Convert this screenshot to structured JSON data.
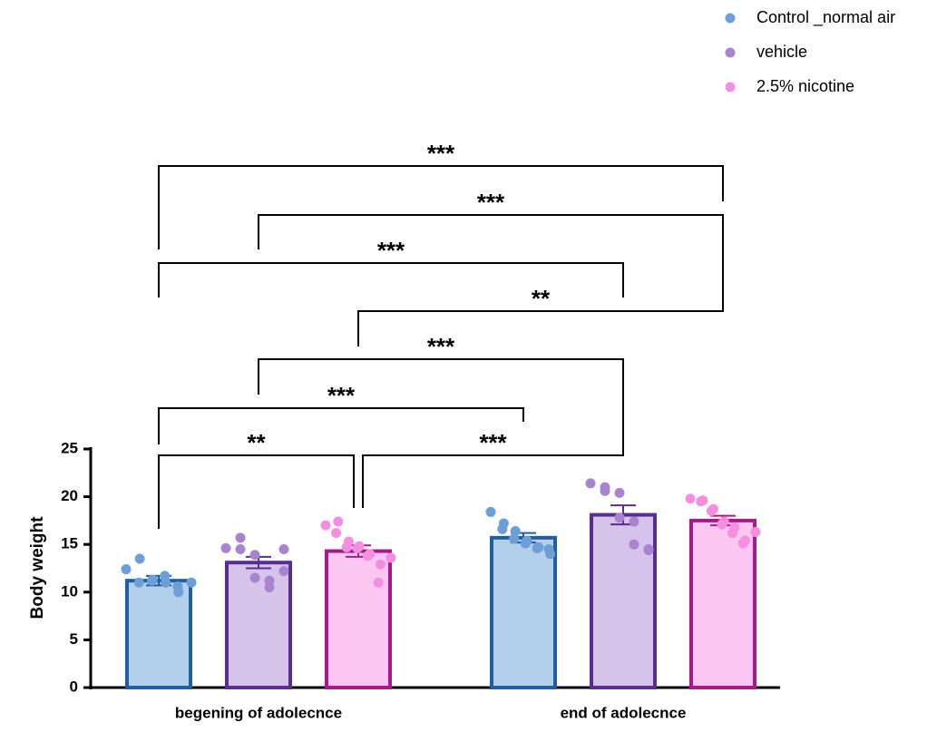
{
  "chart_data": {
    "type": "bar",
    "y_label": "Body weight",
    "categories": [
      "begening of adolecnce",
      "end of adolecnce"
    ],
    "ylim": [
      0,
      25
    ],
    "yticks": [
      0,
      5,
      10,
      15,
      20,
      25
    ],
    "legend_position": "top-right",
    "series": [
      {
        "name": "Control _normal air",
        "color": "#b4cfeb",
        "edge_color": "#1f5fa0",
        "point_color": "#6a9fd8",
        "values": [
          11.2,
          15.7
        ],
        "errors": [
          0.5,
          0.5
        ],
        "points": [
          [
            12.4,
            13.5,
            11.0,
            11.3,
            11.2,
            11.0,
            11.7,
            10.0,
            10.6,
            11.0
          ],
          [
            18.4,
            17.2,
            16.6,
            16.4,
            15.6,
            15.4,
            15.1,
            14.7,
            14.6,
            14.0,
            14.5
          ]
        ]
      },
      {
        "name": "vehicle",
        "color": "#d6c3ea",
        "edge_color": "#5b2d91",
        "point_color": "#a982d0",
        "values": [
          13.1,
          18.1
        ],
        "errors": [
          0.6,
          1.0
        ],
        "points": [
          [
            14.6,
            15.7,
            14.5,
            13.9,
            11.5,
            10.5,
            11.2,
            12.2,
            14.5
          ],
          [
            21.4,
            21.0,
            20.6,
            20.4,
            17.8,
            17.4,
            15.0,
            14.4,
            14.5
          ]
        ]
      },
      {
        "name": "2.5% nicotine",
        "color": "#fcc6f2",
        "edge_color": "#a8198c",
        "point_color": "#f58ee0",
        "values": [
          14.3,
          17.5
        ],
        "errors": [
          0.6,
          0.5
        ],
        "points": [
          [
            17.0,
            17.4,
            16.2,
            15.3,
            14.7,
            14.8,
            14.6,
            14.0,
            13.8,
            12.9,
            11.0,
            13.6
          ],
          [
            19.8,
            19.6,
            19.5,
            18.7,
            18.5,
            17.4,
            17.1,
            16.8,
            16.2,
            15.4,
            15.1,
            16.3
          ]
        ]
      }
    ],
    "annotations": [
      "***",
      "***",
      "***",
      "**",
      "***",
      "***",
      "**",
      "***"
    ]
  }
}
